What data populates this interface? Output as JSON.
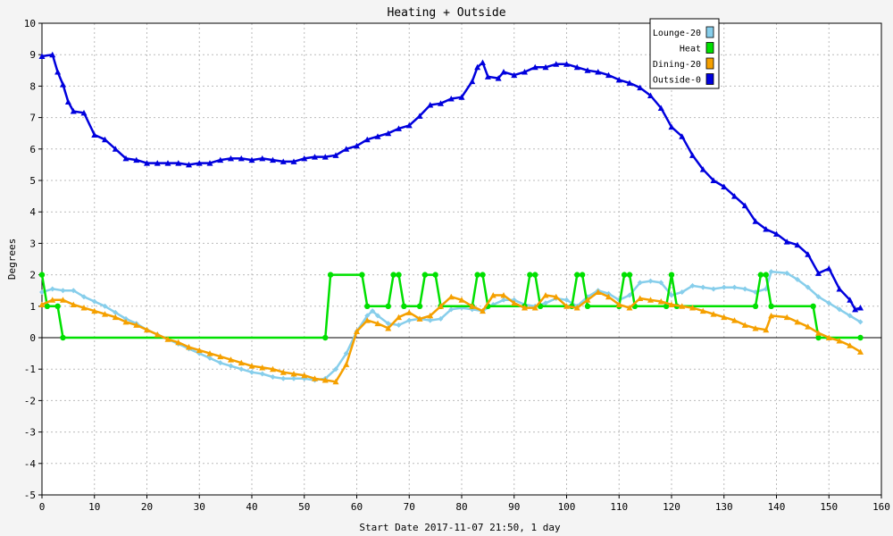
{
  "chart_data": {
    "type": "line",
    "title": "Heating + Outside",
    "xlabel": "Start Date 2017-11-07 21:50, 1 day",
    "ylabel": "Degrees",
    "xlim": [
      0,
      160
    ],
    "ylim": [
      -5,
      10
    ],
    "xticks": [
      0,
      10,
      20,
      30,
      40,
      50,
      60,
      70,
      80,
      90,
      100,
      110,
      120,
      130,
      140,
      150,
      160
    ],
    "yticks": [
      -5,
      -4,
      -3,
      -2,
      -1,
      0,
      1,
      2,
      3,
      4,
      5,
      6,
      7,
      8,
      9,
      10
    ],
    "grid": true,
    "legend_position": "top-right",
    "series": [
      {
        "name": "Lounge-20",
        "color": "#87ceeb",
        "marker": "diamond",
        "points": [
          [
            0,
            1.45
          ],
          [
            2,
            1.55
          ],
          [
            4,
            1.5
          ],
          [
            6,
            1.5
          ],
          [
            8,
            1.3
          ],
          [
            10,
            1.15
          ],
          [
            12,
            1.0
          ],
          [
            14,
            0.8
          ],
          [
            16,
            0.6
          ],
          [
            18,
            0.45
          ],
          [
            20,
            0.25
          ],
          [
            22,
            0.1
          ],
          [
            24,
            -0.05
          ],
          [
            26,
            -0.2
          ],
          [
            28,
            -0.35
          ],
          [
            30,
            -0.5
          ],
          [
            32,
            -0.65
          ],
          [
            34,
            -0.8
          ],
          [
            36,
            -0.9
          ],
          [
            38,
            -1.0
          ],
          [
            40,
            -1.1
          ],
          [
            42,
            -1.15
          ],
          [
            44,
            -1.25
          ],
          [
            46,
            -1.3
          ],
          [
            48,
            -1.3
          ],
          [
            50,
            -1.3
          ],
          [
            52,
            -1.35
          ],
          [
            54,
            -1.3
          ],
          [
            56,
            -1.0
          ],
          [
            58,
            -0.5
          ],
          [
            60,
            0.2
          ],
          [
            62,
            0.7
          ],
          [
            63,
            0.85
          ],
          [
            64,
            0.7
          ],
          [
            66,
            0.45
          ],
          [
            68,
            0.4
          ],
          [
            70,
            0.55
          ],
          [
            72,
            0.6
          ],
          [
            74,
            0.55
          ],
          [
            76,
            0.6
          ],
          [
            78,
            0.9
          ],
          [
            80,
            0.95
          ],
          [
            82,
            0.9
          ],
          [
            84,
            0.85
          ],
          [
            86,
            1.05
          ],
          [
            88,
            1.2
          ],
          [
            90,
            1.2
          ],
          [
            92,
            1.05
          ],
          [
            94,
            1.0
          ],
          [
            96,
            1.1
          ],
          [
            98,
            1.25
          ],
          [
            100,
            1.2
          ],
          [
            102,
            1.0
          ],
          [
            104,
            1.3
          ],
          [
            106,
            1.5
          ],
          [
            108,
            1.4
          ],
          [
            110,
            1.2
          ],
          [
            112,
            1.35
          ],
          [
            114,
            1.75
          ],
          [
            116,
            1.8
          ],
          [
            118,
            1.75
          ],
          [
            120,
            1.35
          ],
          [
            122,
            1.45
          ],
          [
            124,
            1.65
          ],
          [
            126,
            1.6
          ],
          [
            128,
            1.55
          ],
          [
            130,
            1.6
          ],
          [
            132,
            1.6
          ],
          [
            134,
            1.55
          ],
          [
            136,
            1.45
          ],
          [
            138,
            1.55
          ],
          [
            139,
            2.1
          ],
          [
            142,
            2.05
          ],
          [
            144,
            1.85
          ],
          [
            146,
            1.6
          ],
          [
            148,
            1.3
          ],
          [
            150,
            1.1
          ],
          [
            152,
            0.9
          ],
          [
            154,
            0.7
          ],
          [
            156,
            0.5
          ]
        ]
      },
      {
        "name": "Heat",
        "color": "#00e000",
        "marker": "circle",
        "points": [
          [
            0,
            2
          ],
          [
            1,
            1
          ],
          [
            3,
            1
          ],
          [
            4,
            0
          ],
          [
            54,
            0
          ],
          [
            55,
            2
          ],
          [
            61,
            2
          ],
          [
            62,
            1
          ],
          [
            66,
            1
          ],
          [
            67,
            2
          ],
          [
            68,
            2
          ],
          [
            69,
            1
          ],
          [
            72,
            1
          ],
          [
            73,
            2
          ],
          [
            75,
            2
          ],
          [
            76,
            1
          ],
          [
            82,
            1
          ],
          [
            83,
            2
          ],
          [
            84,
            2
          ],
          [
            85,
            1
          ],
          [
            92,
            1
          ],
          [
            93,
            2
          ],
          [
            94,
            2
          ],
          [
            95,
            1
          ],
          [
            101,
            1
          ],
          [
            102,
            2
          ],
          [
            103,
            2
          ],
          [
            104,
            1
          ],
          [
            110,
            1
          ],
          [
            111,
            2
          ],
          [
            112,
            2
          ],
          [
            113,
            1
          ],
          [
            119,
            1
          ],
          [
            120,
            2
          ],
          [
            121,
            1
          ],
          [
            136,
            1
          ],
          [
            137,
            2
          ],
          [
            138,
            2
          ],
          [
            139,
            1
          ],
          [
            147,
            1
          ],
          [
            148,
            0
          ],
          [
            156,
            0
          ]
        ]
      },
      {
        "name": "Dining-20",
        "color": "#f5a000",
        "marker": "triangle",
        "points": [
          [
            0,
            1.05
          ],
          [
            2,
            1.2
          ],
          [
            4,
            1.2
          ],
          [
            6,
            1.05
          ],
          [
            8,
            0.95
          ],
          [
            10,
            0.85
          ],
          [
            12,
            0.75
          ],
          [
            14,
            0.65
          ],
          [
            16,
            0.5
          ],
          [
            18,
            0.4
          ],
          [
            20,
            0.25
          ],
          [
            22,
            0.1
          ],
          [
            24,
            -0.05
          ],
          [
            26,
            -0.15
          ],
          [
            28,
            -0.3
          ],
          [
            30,
            -0.4
          ],
          [
            32,
            -0.5
          ],
          [
            34,
            -0.6
          ],
          [
            36,
            -0.7
          ],
          [
            38,
            -0.8
          ],
          [
            40,
            -0.9
          ],
          [
            42,
            -0.95
          ],
          [
            44,
            -1.0
          ],
          [
            46,
            -1.1
          ],
          [
            48,
            -1.15
          ],
          [
            50,
            -1.2
          ],
          [
            52,
            -1.3
          ],
          [
            54,
            -1.35
          ],
          [
            56,
            -1.4
          ],
          [
            58,
            -0.85
          ],
          [
            60,
            0.2
          ],
          [
            62,
            0.55
          ],
          [
            64,
            0.45
          ],
          [
            66,
            0.3
          ],
          [
            68,
            0.65
          ],
          [
            70,
            0.8
          ],
          [
            72,
            0.6
          ],
          [
            74,
            0.7
          ],
          [
            76,
            1.0
          ],
          [
            78,
            1.3
          ],
          [
            80,
            1.2
          ],
          [
            82,
            1.0
          ],
          [
            84,
            0.85
          ],
          [
            86,
            1.35
          ],
          [
            88,
            1.35
          ],
          [
            90,
            1.1
          ],
          [
            92,
            0.95
          ],
          [
            94,
            0.95
          ],
          [
            96,
            1.35
          ],
          [
            98,
            1.3
          ],
          [
            100,
            1.0
          ],
          [
            102,
            0.95
          ],
          [
            104,
            1.2
          ],
          [
            106,
            1.45
          ],
          [
            108,
            1.3
          ],
          [
            110,
            1.05
          ],
          [
            112,
            0.95
          ],
          [
            114,
            1.25
          ],
          [
            116,
            1.2
          ],
          [
            118,
            1.15
          ],
          [
            120,
            1.05
          ],
          [
            122,
            1.0
          ],
          [
            124,
            0.95
          ],
          [
            126,
            0.85
          ],
          [
            128,
            0.75
          ],
          [
            130,
            0.65
          ],
          [
            132,
            0.55
          ],
          [
            134,
            0.4
          ],
          [
            136,
            0.3
          ],
          [
            138,
            0.25
          ],
          [
            139,
            0.7
          ],
          [
            142,
            0.65
          ],
          [
            144,
            0.5
          ],
          [
            146,
            0.35
          ],
          [
            148,
            0.15
          ],
          [
            150,
            0.0
          ],
          [
            152,
            -0.1
          ],
          [
            154,
            -0.25
          ],
          [
            156,
            -0.45
          ]
        ]
      },
      {
        "name": "Outside-0",
        "color": "#0000dd",
        "marker": "triangle",
        "points": [
          [
            0,
            8.95
          ],
          [
            2,
            9.0
          ],
          [
            3,
            8.45
          ],
          [
            4,
            8.05
          ],
          [
            5,
            7.5
          ],
          [
            6,
            7.2
          ],
          [
            8,
            7.15
          ],
          [
            10,
            6.45
          ],
          [
            12,
            6.3
          ],
          [
            14,
            6.0
          ],
          [
            16,
            5.7
          ],
          [
            18,
            5.65
          ],
          [
            20,
            5.55
          ],
          [
            22,
            5.55
          ],
          [
            24,
            5.55
          ],
          [
            26,
            5.55
          ],
          [
            28,
            5.5
          ],
          [
            30,
            5.55
          ],
          [
            32,
            5.55
          ],
          [
            34,
            5.65
          ],
          [
            36,
            5.7
          ],
          [
            38,
            5.7
          ],
          [
            40,
            5.65
          ],
          [
            42,
            5.7
          ],
          [
            44,
            5.65
          ],
          [
            46,
            5.6
          ],
          [
            48,
            5.6
          ],
          [
            50,
            5.7
          ],
          [
            52,
            5.75
          ],
          [
            54,
            5.75
          ],
          [
            56,
            5.8
          ],
          [
            58,
            6.0
          ],
          [
            60,
            6.1
          ],
          [
            62,
            6.3
          ],
          [
            64,
            6.4
          ],
          [
            66,
            6.5
          ],
          [
            68,
            6.65
          ],
          [
            70,
            6.75
          ],
          [
            72,
            7.05
          ],
          [
            74,
            7.4
          ],
          [
            76,
            7.45
          ],
          [
            78,
            7.6
          ],
          [
            80,
            7.65
          ],
          [
            82,
            8.15
          ],
          [
            83,
            8.6
          ],
          [
            84,
            8.75
          ],
          [
            85,
            8.3
          ],
          [
            87,
            8.25
          ],
          [
            88,
            8.45
          ],
          [
            90,
            8.35
          ],
          [
            92,
            8.45
          ],
          [
            94,
            8.6
          ],
          [
            96,
            8.6
          ],
          [
            98,
            8.7
          ],
          [
            100,
            8.7
          ],
          [
            102,
            8.6
          ],
          [
            104,
            8.5
          ],
          [
            106,
            8.45
          ],
          [
            108,
            8.35
          ],
          [
            110,
            8.2
          ],
          [
            112,
            8.1
          ],
          [
            114,
            7.95
          ],
          [
            116,
            7.7
          ],
          [
            118,
            7.3
          ],
          [
            120,
            6.7
          ],
          [
            122,
            6.4
          ],
          [
            124,
            5.8
          ],
          [
            126,
            5.35
          ],
          [
            128,
            5.0
          ],
          [
            130,
            4.8
          ],
          [
            132,
            4.5
          ],
          [
            134,
            4.2
          ],
          [
            136,
            3.7
          ],
          [
            138,
            3.45
          ],
          [
            140,
            3.3
          ],
          [
            142,
            3.05
          ],
          [
            144,
            2.95
          ],
          [
            146,
            2.65
          ],
          [
            148,
            2.05
          ],
          [
            150,
            2.2
          ],
          [
            152,
            1.55
          ],
          [
            154,
            1.2
          ],
          [
            155,
            0.9
          ],
          [
            156,
            0.95
          ]
        ]
      }
    ]
  }
}
